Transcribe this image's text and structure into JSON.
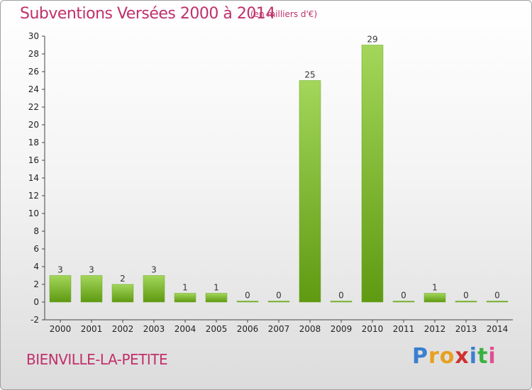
{
  "header": {
    "title": "Subventions Versées 2000 à 2014",
    "unit": "(en milliers d'€)"
  },
  "footer": {
    "commune": "BIENVILLE-LA-PETITE",
    "brand_letters": [
      "P",
      "r",
      "o",
      "x",
      "i",
      "t",
      "i"
    ]
  },
  "colors": {
    "title": "#c0306a",
    "bar_light": "#a3d65a",
    "bar_dark": "#5f9a12",
    "brand": [
      "#3a7fd0",
      "#e8a020",
      "#e8a020",
      "#d03030",
      "#3a7fd0",
      "#3ab040",
      "#e05090"
    ]
  },
  "chart_data": {
    "type": "bar",
    "categories": [
      "2000",
      "2001",
      "2002",
      "2003",
      "2004",
      "2005",
      "2006",
      "2007",
      "2008",
      "2009",
      "2010",
      "2011",
      "2012",
      "2013",
      "2014"
    ],
    "values": [
      3,
      3,
      2,
      3,
      1,
      1,
      0,
      0,
      25,
      0,
      29,
      0,
      1,
      0,
      0
    ],
    "ylim": [
      -2,
      30
    ],
    "yticks": [
      -2,
      0,
      2,
      4,
      6,
      8,
      10,
      12,
      14,
      16,
      18,
      20,
      22,
      24,
      26,
      28,
      30
    ],
    "title": "Subventions Versées 2000 à 2014",
    "xlabel": "",
    "ylabel": "",
    "grid": false,
    "legend": "none"
  }
}
